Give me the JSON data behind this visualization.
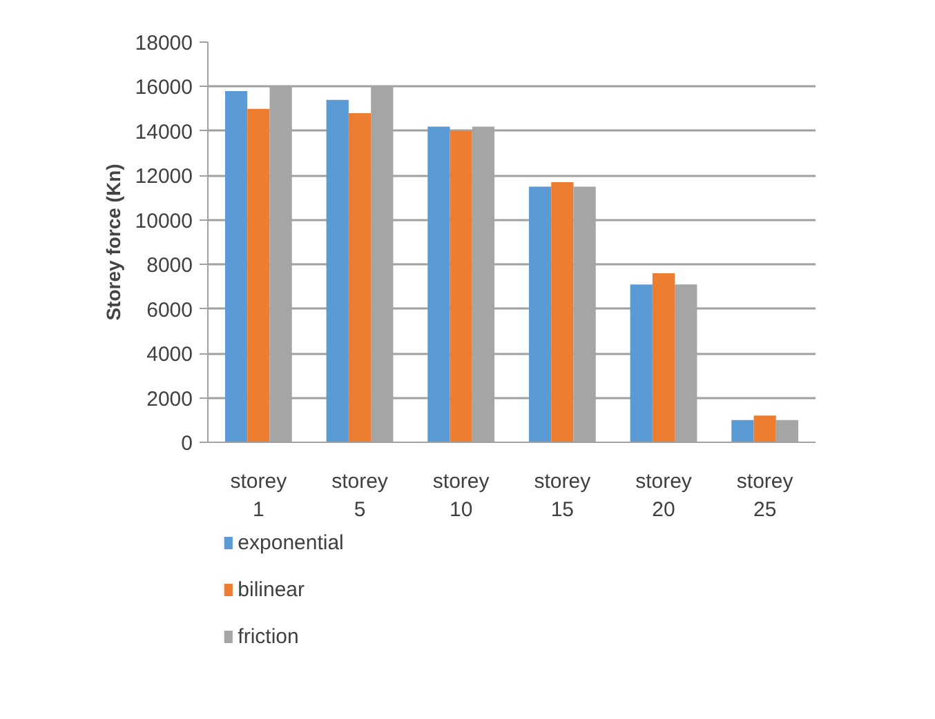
{
  "chart_data": {
    "type": "bar",
    "ylabel": "Storey force (Kn)",
    "categories": [
      "storey 1",
      "storey 5",
      "storey 10",
      "storey 15",
      "storey 20",
      "storey 25"
    ],
    "series": [
      {
        "name": "exponential",
        "color": "#5b9bd5",
        "values": [
          15800,
          15400,
          14200,
          11500,
          7100,
          1000
        ]
      },
      {
        "name": "bilinear",
        "color": "#ed7d31",
        "values": [
          15000,
          14800,
          14000,
          11700,
          7600,
          1200
        ]
      },
      {
        "name": "friction",
        "color": "#a5a5a5",
        "values": [
          16000,
          16000,
          14200,
          11500,
          7100,
          1000
        ]
      }
    ],
    "ylim": [
      0,
      18000
    ],
    "yticks": [
      0,
      2000,
      4000,
      6000,
      8000,
      10000,
      12000,
      14000,
      16000,
      18000
    ],
    "grid": "y",
    "legend": "bottom left"
  }
}
